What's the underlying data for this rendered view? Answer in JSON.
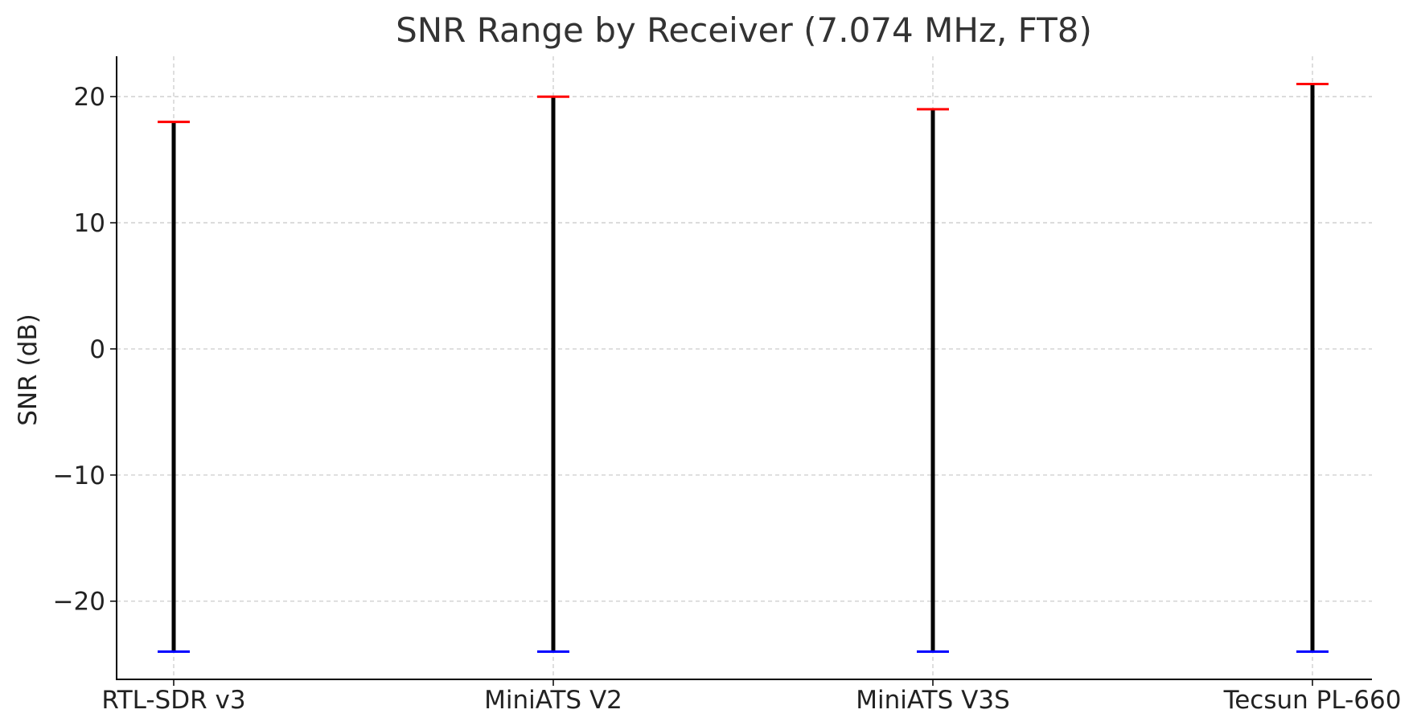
{
  "chart_data": {
    "type": "range",
    "title": "SNR Range by Receiver (7.074 MHz, FT8)",
    "xlabel": "",
    "ylabel": "SNR (dB)",
    "categories": [
      "RTL-SDR v3",
      "MiniATS V2",
      "MiniATS V3S",
      "Tecsun PL-660"
    ],
    "min_values": [
      -24,
      -24,
      -24,
      -24
    ],
    "max_values": [
      18,
      20,
      19,
      21
    ],
    "ylim": [
      -26.2,
      23.2
    ],
    "yticks": [
      -20,
      -10,
      0,
      10,
      20
    ],
    "ytick_labels": [
      "−20",
      "−10",
      "0",
      "10",
      "20"
    ],
    "grid": true,
    "colors": {
      "range_line": "#000000",
      "max_marker": "#ff0000",
      "min_marker": "#0000ff",
      "grid": "#cccccc",
      "axis": "#000000"
    }
  }
}
